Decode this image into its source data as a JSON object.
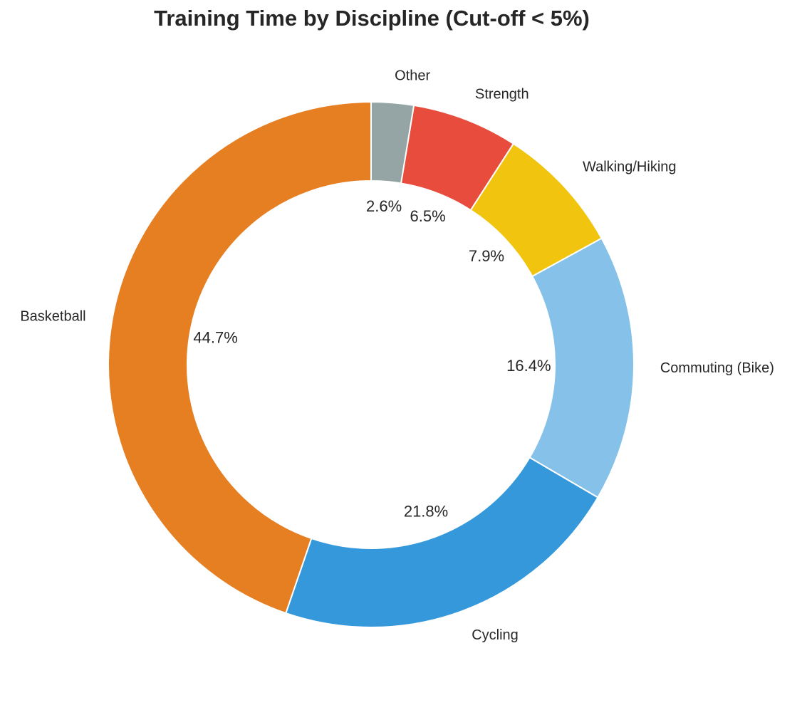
{
  "chart_data": {
    "type": "pie",
    "variant": "donut",
    "title": "Training Time by Discipline (Cut-off < 5%)",
    "categories": [
      "Basketball",
      "Cycling",
      "Commuting (Bike)",
      "Walking/Hiking",
      "Strength",
      "Other"
    ],
    "values": [
      44.7,
      21.8,
      16.4,
      7.9,
      6.5,
      2.6
    ],
    "value_labels": [
      "44.7%",
      "21.8%",
      "16.4%",
      "7.9%",
      "6.5%",
      "2.6%"
    ],
    "colors": [
      "#e67e22",
      "#3498db",
      "#85c1e9",
      "#f1c40f",
      "#e74c3c",
      "#95a5a6"
    ],
    "start_angle": 90,
    "direction": "counterclockwise",
    "legend": "none"
  }
}
